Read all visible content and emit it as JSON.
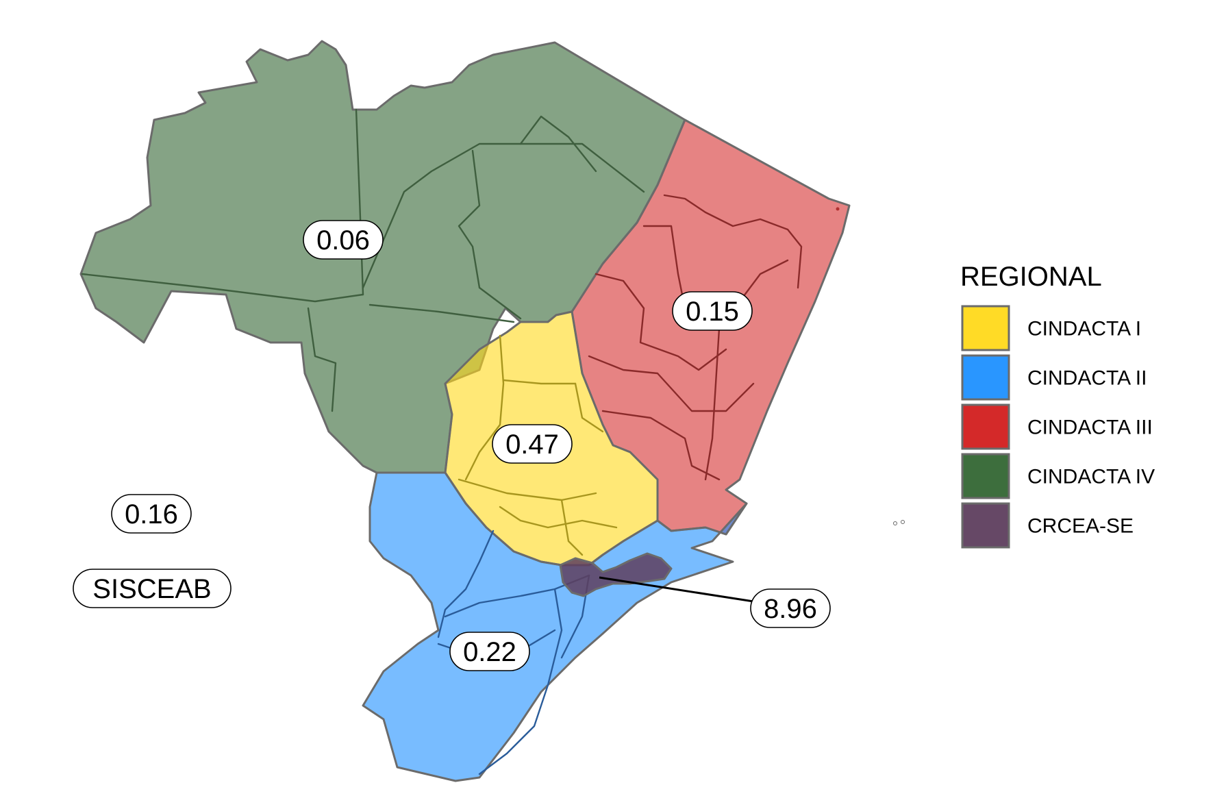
{
  "legend": {
    "title": "REGIONAL",
    "items": [
      {
        "label": "CINDACTA I",
        "color": "#FFD91A"
      },
      {
        "label": "CINDACTA II",
        "color": "#1E90FF"
      },
      {
        "label": "CINDACTA III",
        "color": "#D21E1E"
      },
      {
        "label": "CINDACTA IV",
        "color": "#336633"
      },
      {
        "label": "CRCEA-SE",
        "color": "#5E3E5E"
      }
    ]
  },
  "region_values": {
    "cindacta_iv": "0.06",
    "cindacta_iii": "0.15",
    "cindacta_i": "0.47",
    "cindacta_ii": "0.22",
    "crcea_se": "8.96"
  },
  "sisceab": {
    "value": "0.16",
    "label": "SISCEAB"
  }
}
